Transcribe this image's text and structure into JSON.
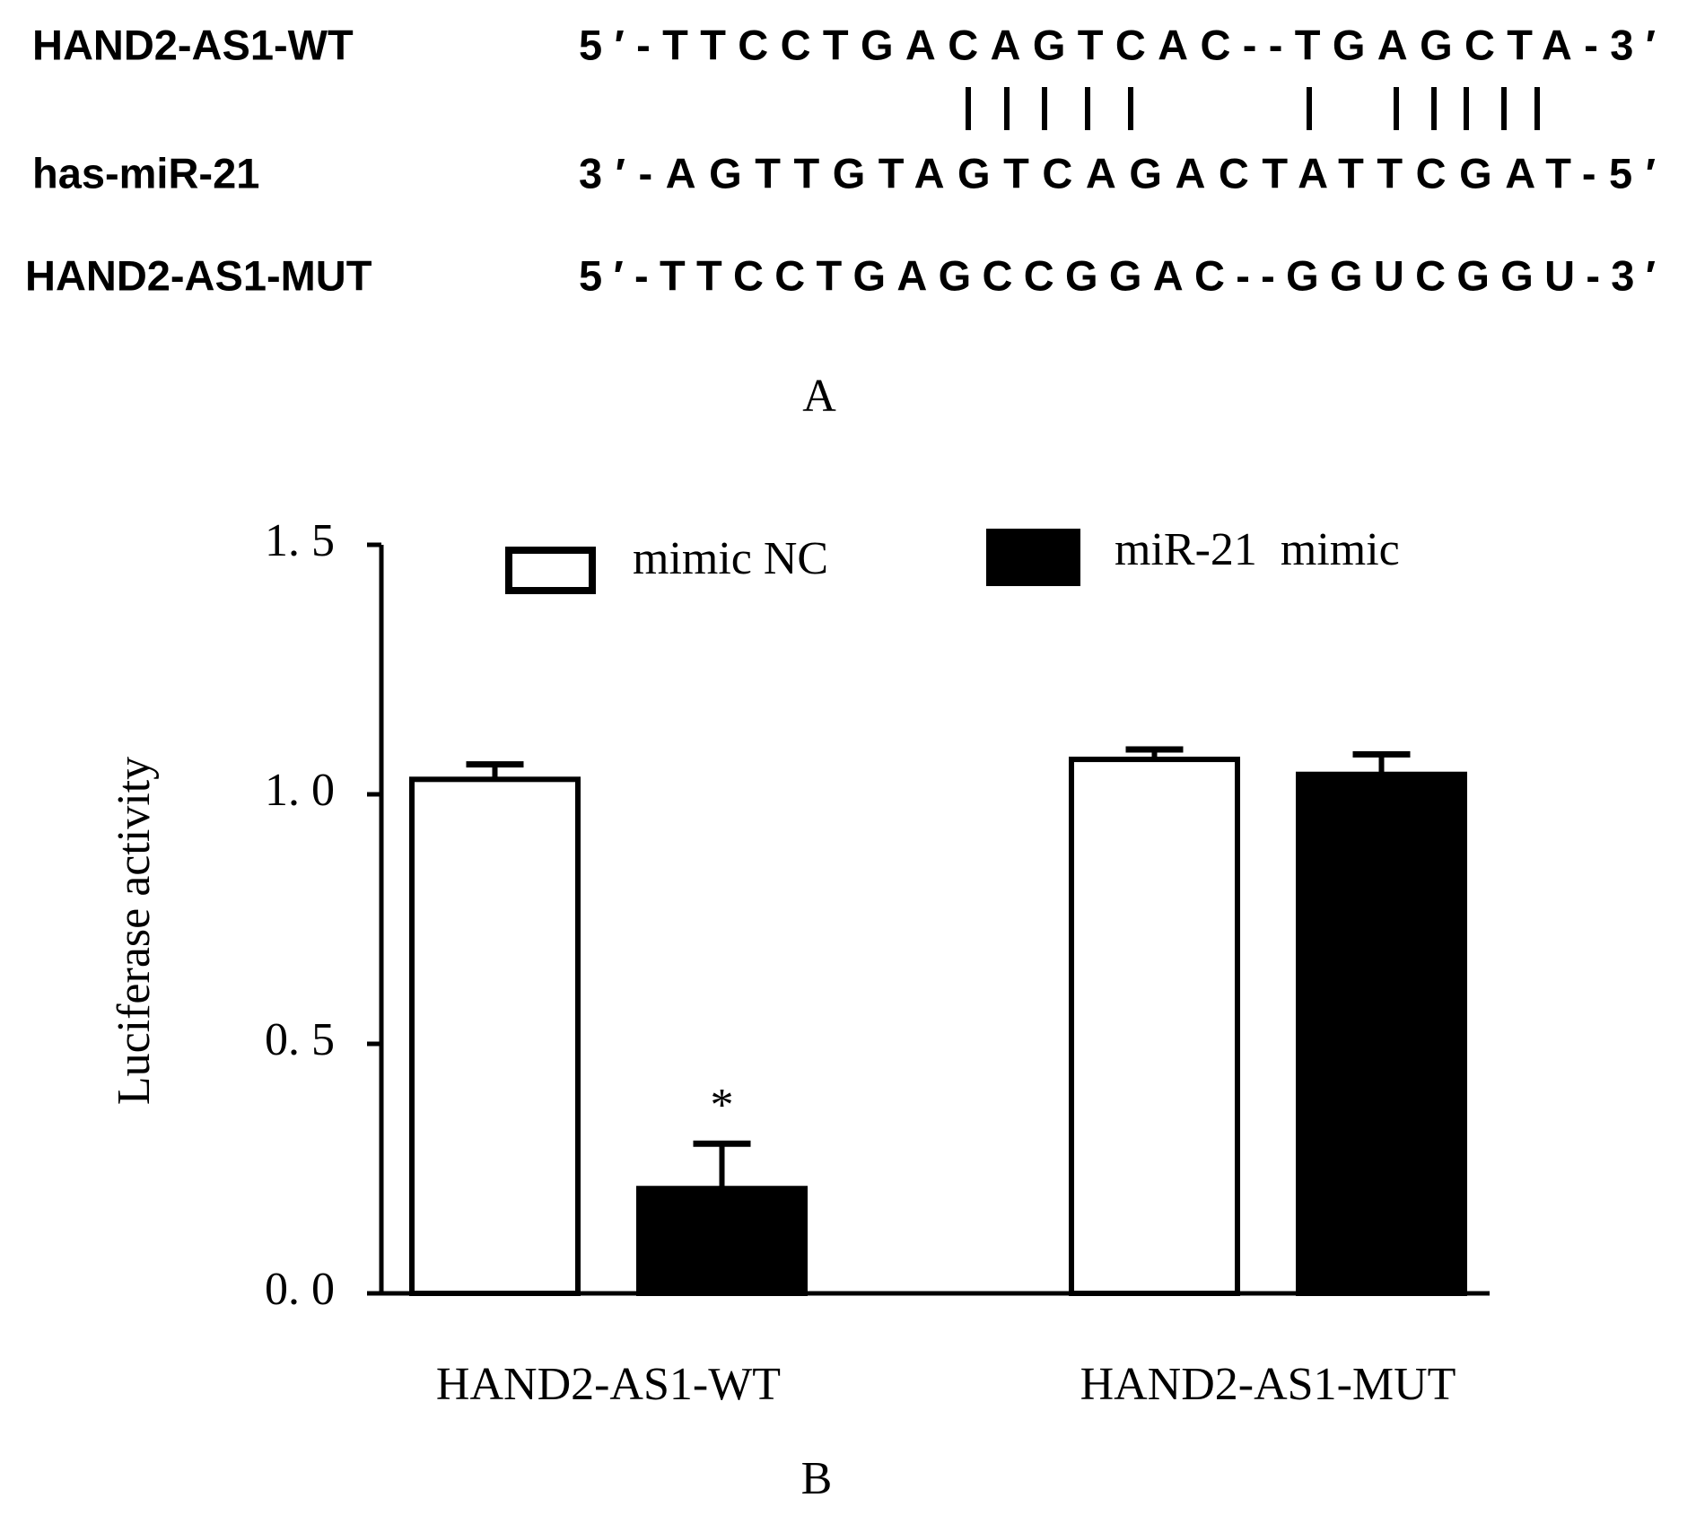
{
  "alignment": {
    "rows": [
      {
        "name": "HAND2-AS1-WT",
        "sequence": "5′-TTCCTGACAGTCAC--TGAGCTA-3′"
      },
      {
        "name": "has-miR-21",
        "sequence": "3′-AGTTGTAGTCAGACTATTCGAT-5′"
      },
      {
        "name": "HAND2-AS1-MUT",
        "sequence": "5′-TTCCTGAGCCGGAC--GGUCGGU-3′"
      }
    ]
  },
  "panel_labels": [
    "A",
    "B"
  ],
  "chart_data": {
    "type": "bar",
    "ylabel": "Luciferase activity",
    "categories": [
      "HAND2-AS1-WT",
      "HAND2-AS1-MUT"
    ],
    "series": [
      {
        "name": "mimic NC",
        "color": "#ffffff",
        "values": [
          1.03,
          1.07
        ],
        "errors": [
          0.03,
          0.02
        ]
      },
      {
        "name": "miR-21  mimic",
        "color": "#000000",
        "values": [
          0.21,
          1.04
        ],
        "errors": [
          0.09,
          0.04
        ]
      }
    ],
    "ylim": [
      0,
      1.5
    ],
    "yticks": [
      {
        "value": 0,
        "label": "0. 0"
      },
      {
        "value": 0.5,
        "label": "0. 5"
      },
      {
        "value": 1,
        "label": "1. 0"
      },
      {
        "value": 1.5,
        "label": "1. 5"
      }
    ],
    "annotations": [
      {
        "text": "*",
        "series": 1,
        "category": 0
      }
    ]
  }
}
